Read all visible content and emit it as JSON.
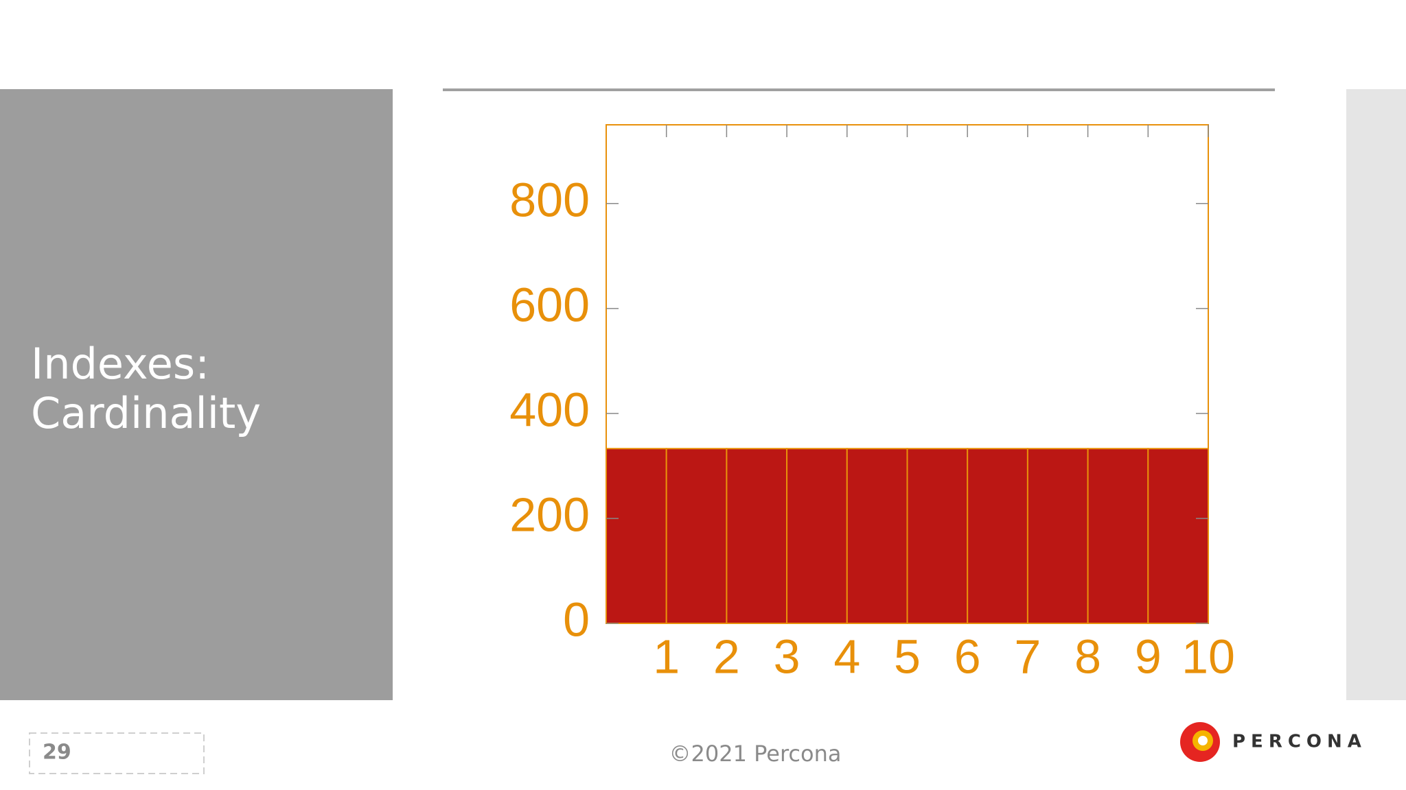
{
  "slide": {
    "title_lines": [
      "Indexes:",
      "Cardinality"
    ],
    "page_number": "29",
    "footer": "©2021 Percona",
    "logo": "PERCONA"
  },
  "chart_data": {
    "type": "histogram",
    "bins": [
      0,
      1,
      2,
      3,
      4,
      5,
      6,
      7,
      8,
      9,
      10
    ],
    "counts": [
      333,
      333,
      333,
      333,
      333,
      333,
      333,
      333,
      333,
      333
    ],
    "color": "#bb1714",
    "edge_color": "#e8900a",
    "axis_color": "#e8900a",
    "xlim": [
      0,
      10
    ],
    "xticks": [
      1,
      2,
      3,
      4,
      5,
      6,
      7,
      8,
      9,
      10
    ],
    "ylim": [
      0,
      950
    ],
    "yticks": [
      0,
      200,
      400,
      600,
      800
    ]
  }
}
